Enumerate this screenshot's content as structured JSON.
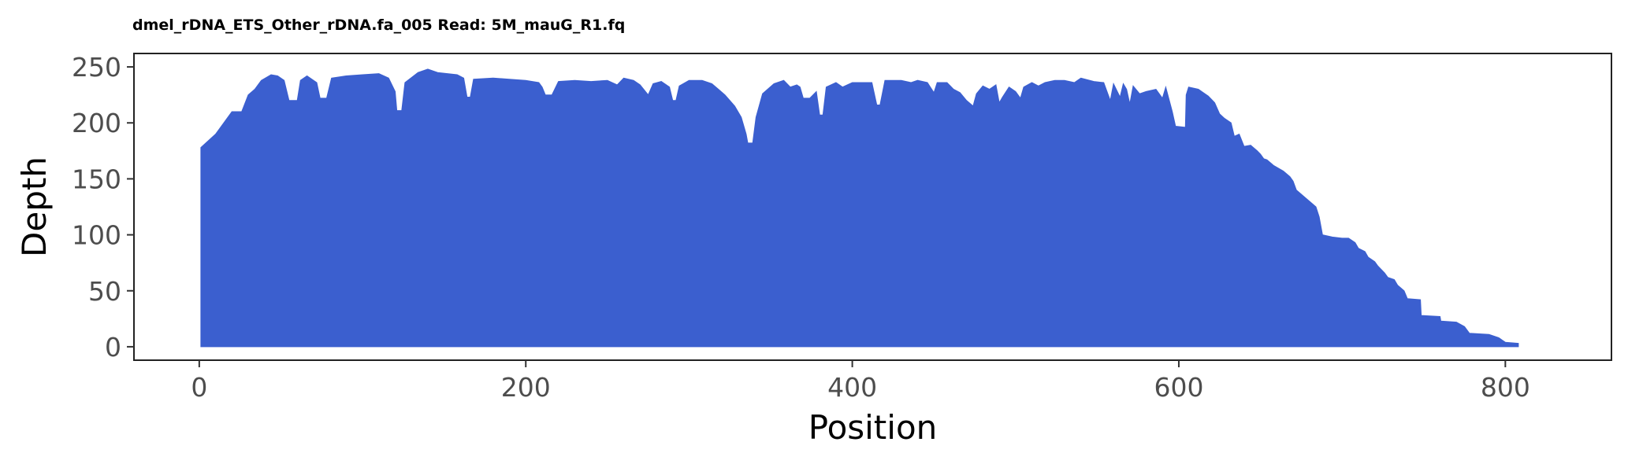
{
  "chart_data": {
    "type": "area",
    "title": "dmel_rDNA_ETS_Other_rDNA.fa_005 Read: 5M_mauG_R1.fq",
    "xlabel": "Position",
    "ylabel": "Depth",
    "xlim": [
      -40,
      865
    ],
    "ylim": [
      -12,
      262
    ],
    "xticks": [
      0,
      200,
      400,
      600,
      800
    ],
    "yticks": [
      0,
      50,
      100,
      150,
      200,
      250
    ],
    "grid": false,
    "legend": "none",
    "fill_color": "#3b5fcf",
    "series": [
      {
        "points": [
          [
            1,
            178
          ],
          [
            10,
            190
          ],
          [
            20,
            210
          ],
          [
            26,
            210
          ],
          [
            30,
            225
          ],
          [
            34,
            230
          ],
          [
            38,
            238
          ],
          [
            44,
            243
          ],
          [
            48,
            242
          ],
          [
            52,
            238
          ],
          [
            55,
            220
          ],
          [
            60,
            220
          ],
          [
            62,
            238
          ],
          [
            66,
            242
          ],
          [
            72,
            236
          ],
          [
            74,
            222
          ],
          [
            78,
            222
          ],
          [
            81,
            240
          ],
          [
            90,
            242
          ],
          [
            100,
            243
          ],
          [
            110,
            244
          ],
          [
            116,
            240
          ],
          [
            120,
            228
          ],
          [
            121,
            211
          ],
          [
            124,
            211
          ],
          [
            126,
            236
          ],
          [
            134,
            245
          ],
          [
            140,
            248
          ],
          [
            146,
            245
          ],
          [
            152,
            244
          ],
          [
            158,
            243
          ],
          [
            162,
            240
          ],
          [
            164,
            223
          ],
          [
            166,
            223
          ],
          [
            168,
            239
          ],
          [
            180,
            240
          ],
          [
            190,
            239
          ],
          [
            200,
            238
          ],
          [
            208,
            236
          ],
          [
            210,
            232
          ],
          [
            212,
            225
          ],
          [
            216,
            225
          ],
          [
            220,
            237
          ],
          [
            230,
            238
          ],
          [
            240,
            237
          ],
          [
            250,
            238
          ],
          [
            256,
            234
          ],
          [
            260,
            240
          ],
          [
            266,
            238
          ],
          [
            270,
            234
          ],
          [
            275,
            225
          ],
          [
            278,
            235
          ],
          [
            283,
            237
          ],
          [
            288,
            232
          ],
          [
            290,
            220
          ],
          [
            292,
            220
          ],
          [
            294,
            233
          ],
          [
            300,
            238
          ],
          [
            308,
            238
          ],
          [
            314,
            235
          ],
          [
            318,
            230
          ],
          [
            322,
            225
          ],
          [
            328,
            215
          ],
          [
            332,
            205
          ],
          [
            335,
            190
          ],
          [
            336,
            182
          ],
          [
            339,
            182
          ],
          [
            341,
            205
          ],
          [
            345,
            226
          ],
          [
            352,
            235
          ],
          [
            358,
            238
          ],
          [
            362,
            232
          ],
          [
            366,
            234
          ],
          [
            368,
            232
          ],
          [
            370,
            222
          ],
          [
            374,
            222
          ],
          [
            378,
            228
          ],
          [
            380,
            207
          ],
          [
            382,
            207
          ],
          [
            384,
            232
          ],
          [
            390,
            236
          ],
          [
            394,
            232
          ],
          [
            400,
            236
          ],
          [
            408,
            236
          ],
          [
            412,
            236
          ],
          [
            415,
            216
          ],
          [
            417,
            216
          ],
          [
            420,
            238
          ],
          [
            430,
            238
          ],
          [
            436,
            236
          ],
          [
            440,
            238
          ],
          [
            446,
            236
          ],
          [
            450,
            227
          ],
          [
            452,
            236
          ],
          [
            458,
            236
          ],
          [
            462,
            230
          ],
          [
            466,
            227
          ],
          [
            470,
            220
          ],
          [
            474,
            215
          ],
          [
            476,
            226
          ],
          [
            480,
            233
          ],
          [
            484,
            230
          ],
          [
            488,
            234
          ],
          [
            490,
            218
          ],
          [
            492,
            223
          ],
          [
            496,
            232
          ],
          [
            500,
            228
          ],
          [
            503,
            222
          ],
          [
            505,
            232
          ],
          [
            510,
            236
          ],
          [
            514,
            233
          ],
          [
            518,
            236
          ],
          [
            524,
            238
          ],
          [
            530,
            238
          ],
          [
            536,
            236
          ],
          [
            540,
            240
          ],
          [
            548,
            237
          ],
          [
            554,
            236
          ],
          [
            558,
            220
          ],
          [
            560,
            235
          ],
          [
            564,
            223
          ],
          [
            566,
            235
          ],
          [
            568,
            230
          ],
          [
            570,
            217
          ],
          [
            572,
            233
          ],
          [
            576,
            226
          ],
          [
            580,
            228
          ],
          [
            586,
            230
          ],
          [
            590,
            222
          ],
          [
            592,
            232
          ],
          [
            596,
            210
          ],
          [
            598,
            197
          ],
          [
            604,
            196
          ],
          [
            604.5,
            225
          ],
          [
            606,
            232
          ],
          [
            612,
            230
          ],
          [
            618,
            224
          ],
          [
            622,
            218
          ],
          [
            625,
            208
          ],
          [
            628,
            204
          ],
          [
            632,
            200
          ],
          [
            634,
            188
          ],
          [
            637,
            190
          ],
          [
            640,
            179
          ],
          [
            644,
            180
          ],
          [
            648,
            175
          ],
          [
            650,
            172
          ],
          [
            652,
            168
          ],
          [
            654,
            167
          ],
          [
            658,
            162
          ],
          [
            664,
            157
          ],
          [
            668,
            152
          ],
          [
            670,
            148
          ],
          [
            672,
            140
          ],
          [
            676,
            135
          ],
          [
            680,
            130
          ],
          [
            684,
            125
          ],
          [
            686,
            116
          ],
          [
            688,
            100
          ],
          [
            694,
            98
          ],
          [
            700,
            97
          ],
          [
            704,
            97
          ],
          [
            708,
            93
          ],
          [
            710,
            88
          ],
          [
            714,
            85
          ],
          [
            716,
            80
          ],
          [
            720,
            76
          ],
          [
            722,
            72
          ],
          [
            726,
            66
          ],
          [
            728,
            62
          ],
          [
            732,
            60
          ],
          [
            734,
            55
          ],
          [
            738,
            50
          ],
          [
            740,
            43
          ],
          [
            748,
            42
          ],
          [
            748.5,
            28
          ],
          [
            760,
            27
          ],
          [
            760.5,
            23
          ],
          [
            770,
            22
          ],
          [
            775,
            18
          ],
          [
            778,
            12
          ],
          [
            790,
            11
          ],
          [
            796,
            8
          ],
          [
            800,
            4
          ],
          [
            808,
            3
          ]
        ]
      }
    ]
  }
}
